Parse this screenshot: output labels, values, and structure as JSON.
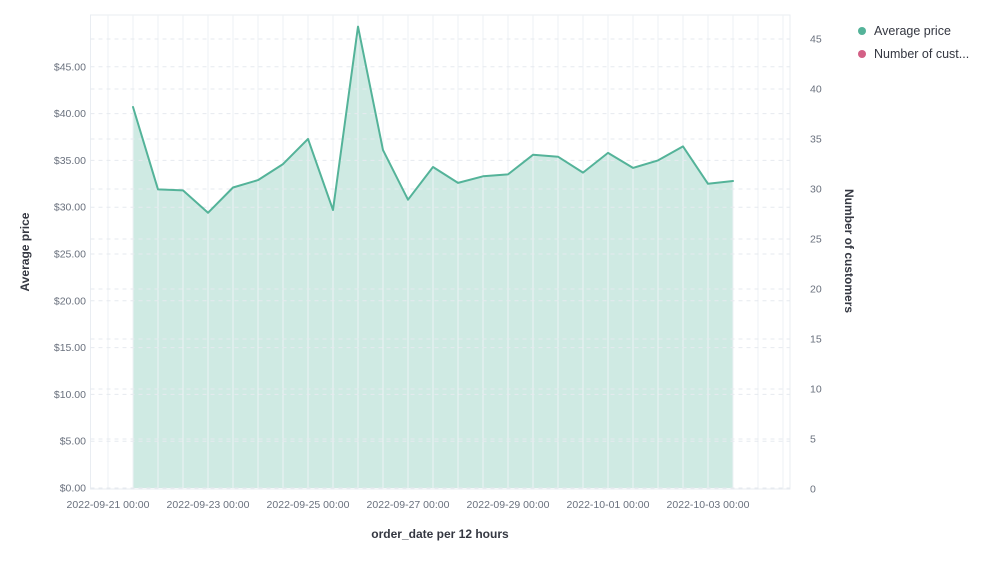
{
  "legend": {
    "items": [
      {
        "label": "Average price",
        "color": "#54B399"
      },
      {
        "label": "Number of cust...",
        "color": "#D36086"
      }
    ]
  },
  "chart_data": {
    "type": "area",
    "title": "",
    "xlabel": "order_date per 12 hours",
    "ylabel_left": "Average price",
    "ylabel_right": "Number of customers",
    "x_interval": "12 hours",
    "grid": true,
    "legend_position": "top-right",
    "x_tick_labels": [
      "2022-09-21 00:00",
      "2022-09-23 00:00",
      "2022-09-25 00:00",
      "2022-09-27 00:00",
      "2022-09-29 00:00",
      "2022-10-01 00:00",
      "2022-10-03 00:00"
    ],
    "x_tick_positions": [
      0,
      4,
      8,
      12,
      16,
      20,
      24
    ],
    "left_axis": {
      "tick_labels": [
        "$0.00",
        "$5.00",
        "$10.00",
        "$15.00",
        "$20.00",
        "$25.00",
        "$30.00",
        "$35.00",
        "$40.00",
        "$45.00"
      ],
      "tick_values": [
        0,
        5,
        10,
        15,
        20,
        25,
        30,
        35,
        40,
        45
      ],
      "range_shown": [
        0,
        50.5
      ]
    },
    "right_axis": {
      "tick_labels": [
        "0",
        "5",
        "10",
        "15",
        "20",
        "25",
        "30",
        "35",
        "40",
        "45"
      ],
      "tick_values": [
        0,
        5,
        10,
        15,
        20,
        25,
        30,
        35,
        40,
        45
      ],
      "range_shown": [
        0,
        47.4
      ]
    },
    "series": [
      {
        "name": "Average price",
        "type": "area",
        "axis": "left",
        "color": "#54B399",
        "fill_opacity": 0.28,
        "t_start": 1,
        "x": [
          "2022-09-21 12:00",
          "2022-09-22 00:00",
          "2022-09-22 12:00",
          "2022-09-23 00:00",
          "2022-09-23 12:00",
          "2022-09-24 00:00",
          "2022-09-24 12:00",
          "2022-09-25 00:00",
          "2022-09-25 12:00",
          "2022-09-26 00:00",
          "2022-09-26 12:00",
          "2022-09-27 00:00",
          "2022-09-27 12:00",
          "2022-09-28 00:00",
          "2022-09-28 12:00",
          "2022-09-29 00:00",
          "2022-09-29 12:00",
          "2022-09-30 00:00",
          "2022-09-30 12:00",
          "2022-10-01 00:00",
          "2022-10-01 12:00",
          "2022-10-02 00:00",
          "2022-10-02 12:00",
          "2022-10-03 00:00",
          "2022-10-03 12:00"
        ],
        "values": [
          40.7,
          31.9,
          31.8,
          29.4,
          32.1,
          32.9,
          34.6,
          37.3,
          29.7,
          49.3,
          36.1,
          30.8,
          34.3,
          32.6,
          33.3,
          33.5,
          35.6,
          35.4,
          33.7,
          35.8,
          34.2,
          35.0,
          36.5,
          32.5,
          32.8
        ]
      },
      {
        "name": "Number of customers",
        "type": "line",
        "axis": "right",
        "color": "#D36086",
        "x": [],
        "values": []
      }
    ]
  }
}
